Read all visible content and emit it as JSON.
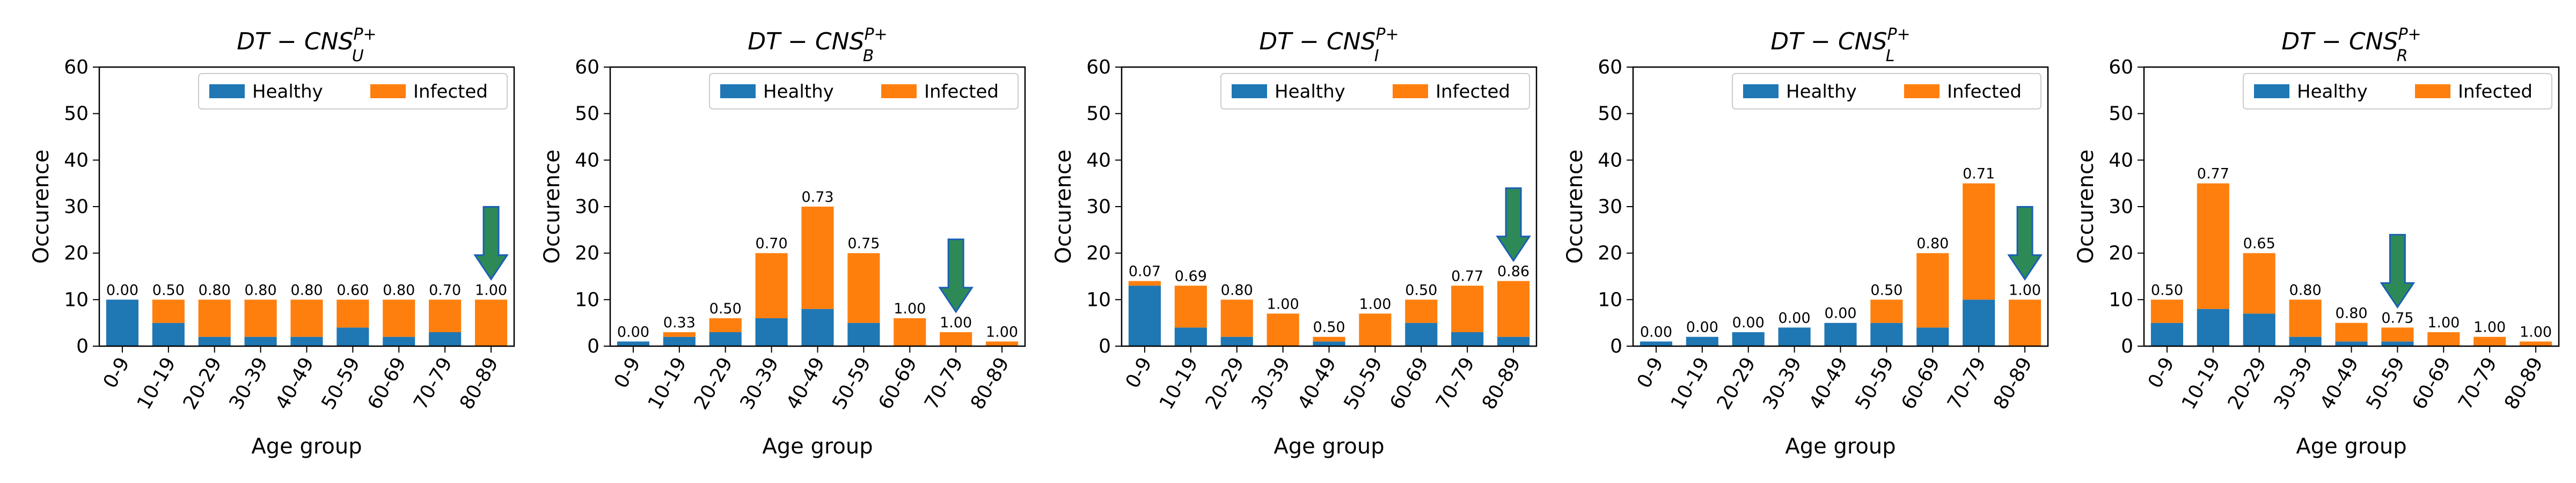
{
  "colors": {
    "healthy": "#1f77b4",
    "infected": "#ff7f0e",
    "arrow_fill": "#2d8a57",
    "arrow_stroke": "#1a5fb4"
  },
  "chart_data": [
    {
      "type": "bar",
      "stacked": true,
      "title": "DT − CNS",
      "title_sub": "U",
      "title_sup": "P+",
      "xlabel": "Age group",
      "ylabel": "Occurence",
      "ylim": [
        0,
        60
      ],
      "yticks": [
        "0",
        "10",
        "20",
        "30",
        "40",
        "50",
        "60"
      ],
      "legend": "top-right",
      "categories": [
        "0-9",
        "10-19",
        "20-29",
        "30-39",
        "40-49",
        "50-59",
        "60-69",
        "70-79",
        "80-89"
      ],
      "series": [
        {
          "name": "Healthy",
          "values": [
            10,
            5,
            2,
            2,
            2,
            4,
            2,
            3,
            0
          ]
        },
        {
          "name": "Infected",
          "values": [
            0,
            5,
            8,
            8,
            8,
            6,
            8,
            7,
            10
          ]
        }
      ],
      "labels": [
        "0.00",
        "0.50",
        "0.80",
        "0.80",
        "0.80",
        "0.60",
        "0.80",
        "0.70",
        "1.00"
      ],
      "arrow_category": "80-89"
    },
    {
      "type": "bar",
      "stacked": true,
      "title": "DT − CNS",
      "title_sub": "B",
      "title_sup": "P+",
      "xlabel": "Age group",
      "ylabel": "Occurence",
      "ylim": [
        0,
        60
      ],
      "yticks": [
        "0",
        "10",
        "20",
        "30",
        "40",
        "50",
        "60"
      ],
      "legend": "top-right",
      "categories": [
        "0-9",
        "10-19",
        "20-29",
        "30-39",
        "40-49",
        "50-59",
        "60-69",
        "70-79",
        "80-89"
      ],
      "series": [
        {
          "name": "Healthy",
          "values": [
            1,
            2,
            3,
            6,
            8,
            5,
            0,
            0,
            0
          ]
        },
        {
          "name": "Infected",
          "values": [
            0,
            1,
            3,
            14,
            22,
            15,
            6,
            3,
            1
          ]
        }
      ],
      "labels": [
        "0.00",
        "0.33",
        "0.50",
        "0.70",
        "0.73",
        "0.75",
        "1.00",
        "1.00",
        "1.00"
      ],
      "arrow_category": "70-79"
    },
    {
      "type": "bar",
      "stacked": true,
      "title": "DT − CNS",
      "title_sub": "I",
      "title_sup": "P+",
      "xlabel": "Age group",
      "ylabel": "Occurence",
      "ylim": [
        0,
        60
      ],
      "yticks": [
        "0",
        "10",
        "20",
        "30",
        "40",
        "50",
        "60"
      ],
      "legend": "top-right",
      "categories": [
        "0-9",
        "10-19",
        "20-29",
        "30-39",
        "40-49",
        "50-59",
        "60-69",
        "70-79",
        "80-89"
      ],
      "series": [
        {
          "name": "Healthy",
          "values": [
            13,
            4,
            2,
            0,
            1,
            0,
            5,
            3,
            2
          ]
        },
        {
          "name": "Infected",
          "values": [
            1,
            9,
            8,
            7,
            1,
            7,
            5,
            10,
            12
          ]
        }
      ],
      "labels": [
        "0.07",
        "0.69",
        "0.80",
        "1.00",
        "0.50",
        "1.00",
        "0.50",
        "0.77",
        "0.86"
      ],
      "arrow_category": "80-89"
    },
    {
      "type": "bar",
      "stacked": true,
      "title": "DT − CNS",
      "title_sub": "L",
      "title_sup": "P+",
      "xlabel": "Age group",
      "ylabel": "Occurence",
      "ylim": [
        0,
        60
      ],
      "yticks": [
        "0",
        "10",
        "20",
        "30",
        "40",
        "50",
        "60"
      ],
      "legend": "top-right",
      "categories": [
        "0-9",
        "10-19",
        "20-29",
        "30-39",
        "40-49",
        "50-59",
        "60-69",
        "70-79",
        "80-89"
      ],
      "series": [
        {
          "name": "Healthy",
          "values": [
            1,
            2,
            3,
            4,
            5,
            5,
            4,
            10,
            0
          ]
        },
        {
          "name": "Infected",
          "values": [
            0,
            0,
            0,
            0,
            0,
            5,
            16,
            25,
            10
          ]
        }
      ],
      "labels": [
        "0.00",
        "0.00",
        "0.00",
        "0.00",
        "0.00",
        "0.50",
        "0.80",
        "0.71",
        "1.00"
      ],
      "arrow_category": "80-89"
    },
    {
      "type": "bar",
      "stacked": true,
      "title": "DT − CNS",
      "title_sub": "R",
      "title_sup": "P+",
      "xlabel": "Age group",
      "ylabel": "Occurence",
      "ylim": [
        0,
        60
      ],
      "yticks": [
        "0",
        "10",
        "20",
        "30",
        "40",
        "50",
        "60"
      ],
      "legend": "top-right",
      "categories": [
        "0-9",
        "10-19",
        "20-29",
        "30-39",
        "40-49",
        "50-59",
        "60-69",
        "70-79",
        "80-89"
      ],
      "series": [
        {
          "name": "Healthy",
          "values": [
            5,
            8,
            7,
            2,
            1,
            1,
            0,
            0,
            0
          ]
        },
        {
          "name": "Infected",
          "values": [
            5,
            27,
            13,
            8,
            4,
            3,
            3,
            2,
            1
          ]
        }
      ],
      "labels": [
        "0.50",
        "0.77",
        "0.65",
        "0.80",
        "0.80",
        "0.75",
        "1.00",
        "1.00",
        "1.00"
      ],
      "arrow_category": "50-59"
    }
  ]
}
